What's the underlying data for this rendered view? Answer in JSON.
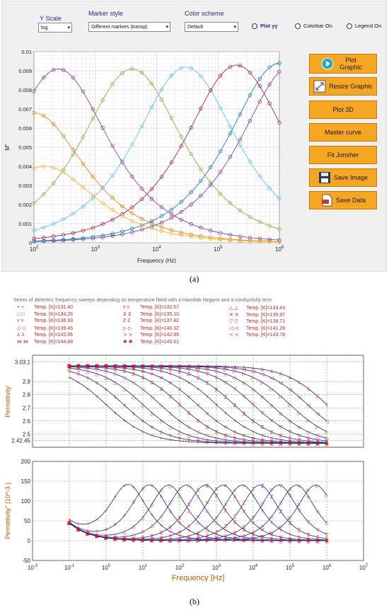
{
  "panel_a": {
    "y_scale": {
      "label": "Y Scale",
      "value": "log"
    },
    "marker_style": {
      "label": "Marker style",
      "value": "Different markers (transp)"
    },
    "color_scheme": {
      "label": "Color scheme",
      "value": "Default"
    },
    "radios": {
      "plot_yy": "Plot yy",
      "colorbar": "Colorbar On",
      "legend": "Legend On"
    },
    "buttons": {
      "plot": "Plot Graphic",
      "resize": "Resize Graphic",
      "plot3d": "Plot 3D",
      "master": "Master curve",
      "jonsher": "Fit Jonsher",
      "save_image": "Save Image",
      "save_data": "Save Data"
    },
    "icons": {
      "plot": "play-icon",
      "resize": "resize-icon",
      "save_image": "floppy-disk-icon",
      "save_data": "document-icon"
    }
  },
  "caption_a": "(a)",
  "caption_b": "(b)",
  "panel_b": {
    "title": "Series of dielectric frequency sweeps depending on temperature fitted with a Havriliak Negami and a conductivity term",
    "legend": [
      "Temp. [K]=131.40",
      "Temp. [K]=132.57",
      "Temp. [K]=133.43",
      "Temp. [K]=134.26",
      "Temp. [K]=135.10",
      "Temp. [K]=135.97",
      "Temp. [K]=136.93",
      "Temp. [K]=137.82",
      "Temp. [K]=138.71",
      "Temp. [K]=139.45",
      "Temp. [K]=140.32",
      "Temp. [K]=141.28",
      "Temp. [K]=142.06",
      "Temp. [K]=142.89",
      "Temp. [K]=143.78",
      "Temp. [K]=144.68",
      "Temp. [K]=145.61"
    ]
  },
  "chart_data": [
    {
      "type": "line",
      "xlabel": "Frequency (Hz)",
      "ylabel": "M\"",
      "xscale": "log",
      "xlim": [
        100,
        1000000
      ],
      "ylim": [
        0,
        0.01
      ],
      "xticks": [
        "10^2",
        "10^3",
        "10^4",
        "10^5",
        "10^6"
      ],
      "yticks": [
        "0",
        "0.001",
        "0.002",
        "0.003",
        "0.004",
        "0.005",
        "0.006",
        "0.007",
        "0.008",
        "0.009",
        "0.01"
      ],
      "grid": true,
      "series": [
        {
          "color": "#e07b00",
          "peak_freq": 100,
          "peak": 0.0068
        },
        {
          "color": "#7e2f8e",
          "peak_freq": 250,
          "peak": 0.0091
        },
        {
          "color": "#77ac30",
          "peak_freq": 4000,
          "peak": 0.0091
        },
        {
          "color": "#4dbeee",
          "peak_freq": 30000,
          "peak": 0.0092
        },
        {
          "color": "#a2142f",
          "peak_freq": 200000,
          "peak": 0.0093
        },
        {
          "color": "#7e2f8e",
          "peak_freq": 1600000,
          "peak": 0.0093
        },
        {
          "color": "#0072bd",
          "peak_freq": 1000000,
          "peak": 0.0094
        },
        {
          "color": "#edb120",
          "peak_freq": 150,
          "peak": 0.004
        }
      ]
    },
    {
      "type": "scatter",
      "ylabel": "Permittivity'",
      "xscale": "log",
      "xlim": [
        0.01,
        10000000
      ],
      "ylim": [
        2.4,
        3.1
      ],
      "yticks": [
        "2.42.45",
        "2.5",
        "2.6",
        "2.7",
        "2.8",
        "2.9",
        "3.03.1"
      ],
      "grid": true,
      "relaxation_freqs": [
        1,
        3,
        10,
        30,
        100,
        300,
        1000,
        3000,
        10000,
        30000,
        100000,
        300000,
        1000000
      ]
    },
    {
      "type": "scatter",
      "xlabel": "Frequency [Hz]",
      "ylabel": "Permittivity'' [10^-3 ]",
      "xscale": "log",
      "xlim": [
        0.01,
        10000000
      ],
      "ylim": [
        -50,
        200
      ],
      "xticks": [
        "10-2",
        "10-1",
        "100",
        "101",
        "102",
        "103",
        "104",
        "105",
        "106",
        "107"
      ],
      "yticks": [
        "-50",
        "0",
        "50",
        "100",
        "150",
        "200"
      ],
      "grid": true,
      "peak_freqs": [
        4,
        15,
        50,
        150,
        500,
        1500,
        5000,
        15000,
        50000,
        150000,
        500000
      ],
      "peak_value": 140
    }
  ]
}
